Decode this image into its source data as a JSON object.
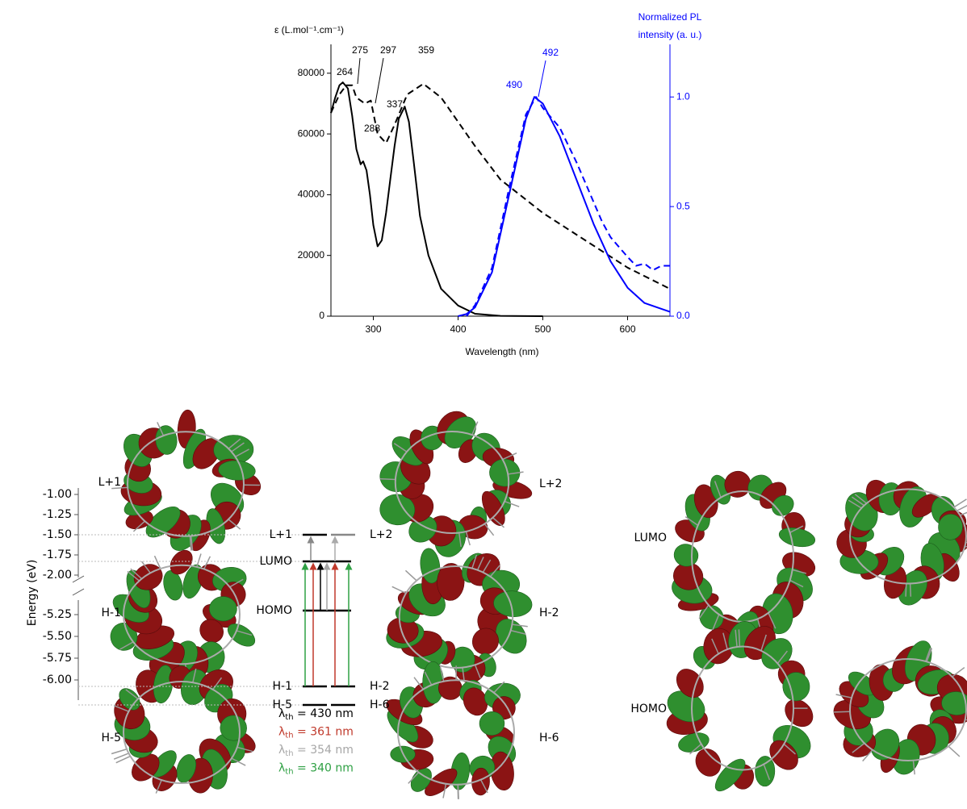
{
  "chart_data": {
    "type": "line",
    "y_label": "ε (L.mol⁻¹.cm⁻¹)",
    "y2_label": [
      "Normalized PL",
      "intensity (a. u.)"
    ],
    "x_label": "Wavelength (nm)",
    "xlim": [
      250,
      650
    ],
    "xticks": [
      300,
      400,
      500,
      600
    ],
    "ylim": [
      0,
      89500
    ],
    "yticks": [
      0,
      20000,
      40000,
      60000,
      80000
    ],
    "y2lim": [
      0,
      1.24
    ],
    "y2ticks": [
      {
        "value": 0,
        "label": "0.0"
      },
      {
        "value": 0.5,
        "label": "0.5"
      },
      {
        "value": 1,
        "label": "1.0"
      }
    ],
    "axis_color": "#000000",
    "y2_color": "#0000ff",
    "series": [
      {
        "color": "#000000",
        "dash": false,
        "x": [
          250,
          255,
          260,
          264,
          270,
          275,
          280,
          285,
          288,
          292,
          296,
          300,
          305,
          310,
          315,
          320,
          325,
          330,
          337,
          342,
          348,
          355,
          365,
          380,
          400,
          420,
          450,
          500
        ],
        "values": [
          66900,
          72000,
          76000,
          77000,
          75000,
          66000,
          55000,
          50000,
          51000,
          48000,
          40000,
          30000,
          23000,
          25000,
          34000,
          45000,
          56000,
          65000,
          69000,
          64000,
          50000,
          33000,
          20000,
          9000,
          3500,
          800,
          100,
          0
        ]
      },
      {
        "color": "#000000",
        "dash": true,
        "x": [
          250,
          260,
          268,
          275,
          280,
          290,
          297,
          305,
          315,
          325,
          340,
          359,
          380,
          400,
          420,
          450,
          500,
          550,
          600,
          650
        ],
        "values": [
          67000,
          73000,
          76000,
          76000,
          72000,
          70000,
          71000,
          60000,
          57000,
          63000,
          73000,
          76500,
          72000,
          64000,
          56000,
          45000,
          34000,
          25000,
          16000,
          9000
        ]
      },
      {
        "color": "#0000ff",
        "dash": false,
        "axis": "y2",
        "x": [
          400,
          410,
          420,
          440,
          460,
          480,
          490,
          500,
          520,
          540,
          560,
          580,
          600,
          620,
          650
        ],
        "values": [
          0,
          0.01,
          0.04,
          0.2,
          0.55,
          0.9,
          1.0,
          0.97,
          0.82,
          0.62,
          0.42,
          0.25,
          0.13,
          0.06,
          0.02
        ]
      },
      {
        "color": "#0000ff",
        "dash": true,
        "axis": "y2",
        "x": [
          410,
          420,
          440,
          460,
          480,
          492,
          500,
          520,
          540,
          560,
          570,
          580,
          600,
          610,
          620,
          630,
          640,
          650
        ],
        "values": [
          0,
          0.05,
          0.22,
          0.58,
          0.92,
          1.0,
          0.95,
          0.86,
          0.7,
          0.52,
          0.43,
          0.36,
          0.27,
          0.23,
          0.24,
          0.21,
          0.23,
          0.23
        ]
      }
    ],
    "annotations": [
      {
        "text": "264",
        "color": "#000000"
      },
      {
        "text": "275",
        "color": "#000000"
      },
      {
        "text": "297",
        "color": "#000000"
      },
      {
        "text": "359",
        "color": "#000000"
      },
      {
        "text": "288",
        "color": "#000000"
      },
      {
        "text": "337",
        "color": "#000000"
      },
      {
        "text": "490",
        "color": "#0000ff"
      },
      {
        "text": "492",
        "color": "#0000ff"
      }
    ]
  },
  "energy_diagram": {
    "y_label": "Energy (eV)",
    "upper_ticks": [
      {
        "value": -1,
        "label": "-1.00"
      },
      {
        "value": -1.25,
        "label": "-1.25"
      },
      {
        "value": -1.5,
        "label": "-1.50"
      },
      {
        "value": -1.75,
        "label": "-1.75"
      },
      {
        "value": -2,
        "label": "-2.00"
      }
    ],
    "lower_ticks": [
      {
        "value": -5.25,
        "label": "-5.25"
      },
      {
        "value": -5.5,
        "label": "-5.50"
      },
      {
        "value": -5.75,
        "label": "-5.75"
      },
      {
        "value": -6,
        "label": "-6.00"
      }
    ],
    "levels": [
      "L+1",
      "L+2",
      "LUMO",
      "HOMO",
      "H-1",
      "H-2",
      "H-5",
      "H-6"
    ],
    "orbital_labels": [
      "L+1",
      "L+2",
      "H-1",
      "H-2",
      "H-5",
      "H-6"
    ],
    "transitions": [
      {
        "symbol": "λ",
        "sub": "th",
        "rest": " = 430 nm",
        "color": "#000000"
      },
      {
        "symbol": "λ",
        "sub": "th",
        "rest": " = 361 nm",
        "color": "#c0392b"
      },
      {
        "symbol": "λ",
        "sub": "th",
        "rest": " = 354 nm",
        "color": "#a6a6a6"
      },
      {
        "symbol": "λ",
        "sub": "th",
        "rest": " = 340 nm",
        "color": "#2ea043"
      }
    ]
  },
  "side_panel": {
    "labels": [
      "LUMO",
      "HOMO"
    ]
  }
}
